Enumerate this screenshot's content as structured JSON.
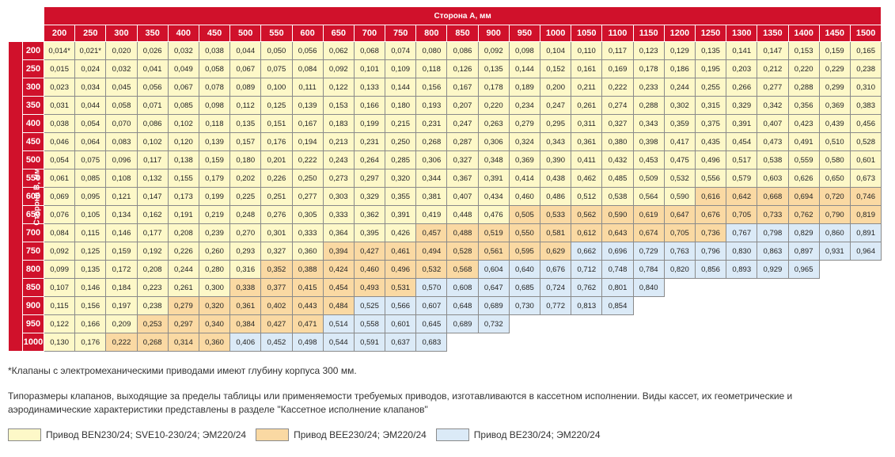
{
  "side_a_label": "Сторона А, мм",
  "side_b_label": "Сторона В, мм",
  "columns": [
    "200",
    "250",
    "300",
    "350",
    "400",
    "450",
    "500",
    "550",
    "600",
    "650",
    "700",
    "750",
    "800",
    "850",
    "900",
    "950",
    "1000",
    "1050",
    "1100",
    "1150",
    "1200",
    "1250",
    "1300",
    "1350",
    "1400",
    "1450",
    "1500"
  ],
  "rows": [
    {
      "h": "200",
      "v": [
        "0,014*",
        "0,021*",
        "0,020",
        "0,026",
        "0,032",
        "0,038",
        "0,044",
        "0,050",
        "0,056",
        "0,062",
        "0,068",
        "0,074",
        "0,080",
        "0,086",
        "0,092",
        "0,098",
        "0,104",
        "0,110",
        "0,117",
        "0,123",
        "0,129",
        "0,135",
        "0,141",
        "0,147",
        "0,153",
        "0,159",
        "0,165"
      ],
      "c": "yyyyyyyyyyyyyyyyyyyyyyyyyyy"
    },
    {
      "h": "250",
      "v": [
        "0,015",
        "0,024",
        "0,032",
        "0,041",
        "0,049",
        "0,058",
        "0,067",
        "0,075",
        "0,084",
        "0,092",
        "0,101",
        "0,109",
        "0,118",
        "0,126",
        "0,135",
        "0,144",
        "0,152",
        "0,161",
        "0,169",
        "0,178",
        "0,186",
        "0,195",
        "0,203",
        "0,212",
        "0,220",
        "0,229",
        "0,238"
      ],
      "c": "yyyyyyyyyyyyyyyyyyyyyyyyyyy"
    },
    {
      "h": "300",
      "v": [
        "0,023",
        "0,034",
        "0,045",
        "0,056",
        "0,067",
        "0,078",
        "0,089",
        "0,100",
        "0,111",
        "0,122",
        "0,133",
        "0,144",
        "0,156",
        "0,167",
        "0,178",
        "0,189",
        "0,200",
        "0,211",
        "0,222",
        "0,233",
        "0,244",
        "0,255",
        "0,266",
        "0,277",
        "0,288",
        "0,299",
        "0,310"
      ],
      "c": "yyyyyyyyyyyyyyyyyyyyyyyyyyy"
    },
    {
      "h": "350",
      "v": [
        "0,031",
        "0,044",
        "0,058",
        "0,071",
        "0,085",
        "0,098",
        "0,112",
        "0,125",
        "0,139",
        "0,153",
        "0,166",
        "0,180",
        "0,193",
        "0,207",
        "0,220",
        "0,234",
        "0,247",
        "0,261",
        "0,274",
        "0,288",
        "0,302",
        "0,315",
        "0,329",
        "0,342",
        "0,356",
        "0,369",
        "0,383"
      ],
      "c": "yyyyyyyyyyyyyyyyyyyyyyyyyyy"
    },
    {
      "h": "400",
      "v": [
        "0,038",
        "0,054",
        "0,070",
        "0,086",
        "0,102",
        "0,118",
        "0,135",
        "0,151",
        "0,167",
        "0,183",
        "0,199",
        "0,215",
        "0,231",
        "0,247",
        "0,263",
        "0,279",
        "0,295",
        "0,311",
        "0,327",
        "0,343",
        "0,359",
        "0,375",
        "0,391",
        "0,407",
        "0,423",
        "0,439",
        "0,456"
      ],
      "c": "yyyyyyyyyyyyyyyyyyyyyyyyyyy"
    },
    {
      "h": "450",
      "v": [
        "0,046",
        "0,064",
        "0,083",
        "0,102",
        "0,120",
        "0,139",
        "0,157",
        "0,176",
        "0,194",
        "0,213",
        "0,231",
        "0,250",
        "0,268",
        "0,287",
        "0,306",
        "0,324",
        "0,343",
        "0,361",
        "0,380",
        "0,398",
        "0,417",
        "0,435",
        "0,454",
        "0,473",
        "0,491",
        "0,510",
        "0,528"
      ],
      "c": "yyyyyyyyyyyyyyyyyyyyyyyyyyy"
    },
    {
      "h": "500",
      "v": [
        "0,054",
        "0,075",
        "0,096",
        "0,117",
        "0,138",
        "0,159",
        "0,180",
        "0,201",
        "0,222",
        "0,243",
        "0,264",
        "0,285",
        "0,306",
        "0,327",
        "0,348",
        "0,369",
        "0,390",
        "0,411",
        "0,432",
        "0,453",
        "0,475",
        "0,496",
        "0,517",
        "0,538",
        "0,559",
        "0,580",
        "0,601"
      ],
      "c": "yyyyyyyyyyyyyyyyyyyyyyyyyyy"
    },
    {
      "h": "550",
      "v": [
        "0,061",
        "0,085",
        "0,108",
        "0,132",
        "0,155",
        "0,179",
        "0,202",
        "0,226",
        "0,250",
        "0,273",
        "0,297",
        "0,320",
        "0,344",
        "0,367",
        "0,391",
        "0,414",
        "0,438",
        "0,462",
        "0,485",
        "0,509",
        "0,532",
        "0,556",
        "0,579",
        "0,603",
        "0,626",
        "0,650",
        "0,673"
      ],
      "c": "yyyyyyyyyyyyyyyyyyyyyyyyyyy"
    },
    {
      "h": "600",
      "v": [
        "0,069",
        "0,095",
        "0,121",
        "0,147",
        "0,173",
        "0,199",
        "0,225",
        "0,251",
        "0,277",
        "0,303",
        "0,329",
        "0,355",
        "0,381",
        "0,407",
        "0,434",
        "0,460",
        "0,486",
        "0,512",
        "0,538",
        "0,564",
        "0,590",
        "0,616",
        "0,642",
        "0,668",
        "0,694",
        "0,720",
        "0,746"
      ],
      "c": "yyyyyyyyyyyyyyyyyyyyyoooooo"
    },
    {
      "h": "650",
      "v": [
        "0,076",
        "0,105",
        "0,134",
        "0,162",
        "0,191",
        "0,219",
        "0,248",
        "0,276",
        "0,305",
        "0,333",
        "0,362",
        "0,391",
        "0,419",
        "0,448",
        "0,476",
        "0,505",
        "0,533",
        "0,562",
        "0,590",
        "0,619",
        "0,647",
        "0,676",
        "0,705",
        "0,733",
        "0,762",
        "0,790",
        "0,819"
      ],
      "c": "yyyyyyyyyyyyyyyoooooooooooo"
    },
    {
      "h": "700",
      "v": [
        "0,084",
        "0,115",
        "0,146",
        "0,177",
        "0,208",
        "0,239",
        "0,270",
        "0,301",
        "0,333",
        "0,364",
        "0,395",
        "0,426",
        "0,457",
        "0,488",
        "0,519",
        "0,550",
        "0,581",
        "0,612",
        "0,643",
        "0,674",
        "0,705",
        "0,736",
        "0,767",
        "0,798",
        "0,829",
        "0,860",
        "0,891"
      ],
      "c": "yyyyyyyyyyyyoooooooooobbbbb"
    },
    {
      "h": "750",
      "v": [
        "0,092",
        "0,125",
        "0,159",
        "0,192",
        "0,226",
        "0,260",
        "0,293",
        "0,327",
        "0,360",
        "0,394",
        "0,427",
        "0,461",
        "0,494",
        "0,528",
        "0,561",
        "0,595",
        "0,629",
        "0,662",
        "0,696",
        "0,729",
        "0,763",
        "0,796",
        "0,830",
        "0,863",
        "0,897",
        "0,931",
        "0,964"
      ],
      "c": "yyyyyyyyyoooooooobbbbbbbbbb"
    },
    {
      "h": "800",
      "v": [
        "0,099",
        "0,135",
        "0,172",
        "0,208",
        "0,244",
        "0,280",
        "0,316",
        "0,352",
        "0,388",
        "0,424",
        "0,460",
        "0,496",
        "0,532",
        "0,568",
        "0,604",
        "0,640",
        "0,676",
        "0,712",
        "0,748",
        "0,784",
        "0,820",
        "0,856",
        "0,893",
        "0,929",
        "0,965"
      ],
      "c": "yyyyyyyooooooobbbbbbbbbbb"
    },
    {
      "h": "850",
      "v": [
        "0,107",
        "0,146",
        "0,184",
        "0,223",
        "0,261",
        "0,300",
        "0,338",
        "0,377",
        "0,415",
        "0,454",
        "0,493",
        "0,531",
        "0,570",
        "0,608",
        "0,647",
        "0,685",
        "0,724",
        "0,762",
        "0,801",
        "0,840"
      ],
      "c": "yyyyyyoooooobbbbbbbb"
    },
    {
      "h": "900",
      "v": [
        "0,115",
        "0,156",
        "0,197",
        "0,238",
        "0,279",
        "0,320",
        "0,361",
        "0,402",
        "0,443",
        "0,484",
        "0,525",
        "0,566",
        "0,607",
        "0,648",
        "0,689",
        "0,730",
        "0,772",
        "0,813",
        "0,854"
      ],
      "c": "yyyyoooooobbbbbbbbb"
    },
    {
      "h": "950",
      "v": [
        "0,122",
        "0,166",
        "0,209",
        "0,253",
        "0,297",
        "0,340",
        "0,384",
        "0,427",
        "0,471",
        "0,514",
        "0,558",
        "0,601",
        "0,645",
        "0,689",
        "0,732"
      ],
      "c": "yyyoooooobbbbbb"
    },
    {
      "h": "1000",
      "v": [
        "0,130",
        "0,176",
        "0,222",
        "0,268",
        "0,314",
        "0,360",
        "0,406",
        "0,452",
        "0,498",
        "0,544",
        "0,591",
        "0,637",
        "0,683"
      ],
      "c": "yyoooobbbbbbb"
    }
  ],
  "note": "*Клапаны с электромеханическими приводами имеют глубину корпуса 300 мм.",
  "description": "Типоразмеры клапанов, выходящие за пределы таблицы или применяемости требуемых приводов, изготавливаются в кассетном исполнении. Виды кассет, их геометрические и аэродинамические характеристики представлены в разделе \"Кассетное исполнение клапанов\"",
  "legend": [
    {
      "label": "Привод BEN230/24; SVE10-230/24; ЭМ220/24",
      "color": "#fdf8c8"
    },
    {
      "label": "Привод BEE230/24; ЭМ220/24",
      "color": "#fad9a3"
    },
    {
      "label": "Привод BE230/24; ЭМ220/24",
      "color": "#dbeaf7"
    }
  ],
  "colors": {
    "header_red": "#d0112b",
    "yellow": "#fdf8c8",
    "orange": "#fad9a3",
    "blue": "#dbeaf7"
  }
}
